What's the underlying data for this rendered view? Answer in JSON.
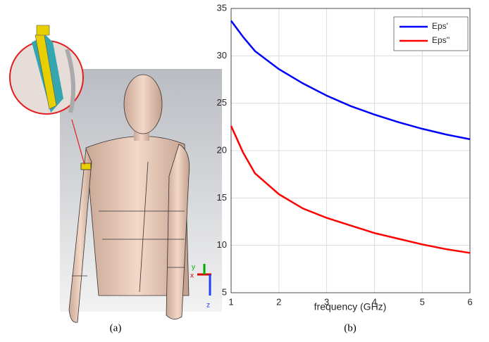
{
  "chart_data": {
    "type": "line",
    "x": [
      1,
      1.25,
      1.5,
      2,
      2.5,
      3,
      3.5,
      4,
      4.5,
      5,
      5.5,
      6
    ],
    "series": [
      {
        "name": "Eps'",
        "color": "#0000ff",
        "values": [
          33.7,
          32.0,
          30.5,
          28.6,
          27.1,
          25.8,
          24.7,
          23.8,
          23.0,
          22.3,
          21.7,
          21.2
        ]
      },
      {
        "name": "Eps''",
        "color": "#ff0000",
        "values": [
          22.6,
          19.8,
          17.6,
          15.4,
          13.9,
          12.9,
          12.1,
          11.3,
          10.7,
          10.1,
          9.6,
          9.2
        ]
      }
    ],
    "xlabel": "frequency (GHz)",
    "xlim": [
      1,
      6
    ],
    "xticks": [
      1,
      2,
      3,
      4,
      5,
      6
    ],
    "ylim": [
      5,
      35
    ],
    "yticks": [
      5,
      10,
      15,
      20,
      25,
      30,
      35
    ],
    "grid": true,
    "legend": "upper right"
  },
  "panel_a": {
    "caption": "(a)",
    "axis_labels": [
      "y",
      "x",
      "z"
    ]
  },
  "panel_b": {
    "caption": "(b)"
  }
}
